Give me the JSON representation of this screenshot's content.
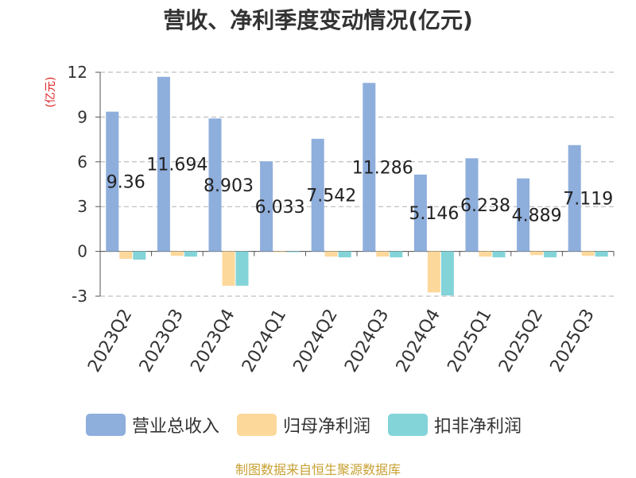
{
  "title": "营收、净利季度变动情况(亿元)",
  "source": "制图数据来自恒生聚源数据库",
  "colors": {
    "revenue": "#8eaedc",
    "net_profit": "#fdd89b",
    "deducted_profit": "#82d4d8",
    "unit": "#e02020"
  },
  "chart_data": {
    "type": "bar",
    "title": "营收、净利季度变动情况(亿元)",
    "ylabel": "(亿元)",
    "xlabel": "",
    "ylim": [
      -3,
      12
    ],
    "yticks": [
      -3,
      0,
      3,
      6,
      9,
      12
    ],
    "grid": true,
    "legend_position": "bottom",
    "categories": [
      "2023Q2",
      "2023Q3",
      "2023Q4",
      "2024Q1",
      "2024Q2",
      "2024Q3",
      "2024Q4",
      "2025Q1",
      "2025Q2",
      "2025Q3"
    ],
    "series": [
      {
        "name": "营业总收入",
        "values": [
          9.36,
          11.694,
          8.903,
          6.033,
          7.542,
          11.286,
          5.146,
          6.238,
          4.889,
          7.119
        ]
      },
      {
        "name": "归母净利润",
        "values": [
          -0.5,
          -0.3,
          -2.3,
          -0.05,
          -0.35,
          -0.35,
          -2.75,
          -0.35,
          -0.25,
          -0.3
        ]
      },
      {
        "name": "扣非净利润",
        "values": [
          -0.55,
          -0.35,
          -2.3,
          -0.05,
          -0.4,
          -0.4,
          -2.95,
          -0.4,
          -0.4,
          -0.35
        ]
      }
    ],
    "data_labels": [
      "9.36",
      "11.694",
      "8.903",
      "6.033",
      "7.542",
      "11.286",
      "5.146",
      "6.238",
      "4.889",
      "7.119"
    ]
  }
}
